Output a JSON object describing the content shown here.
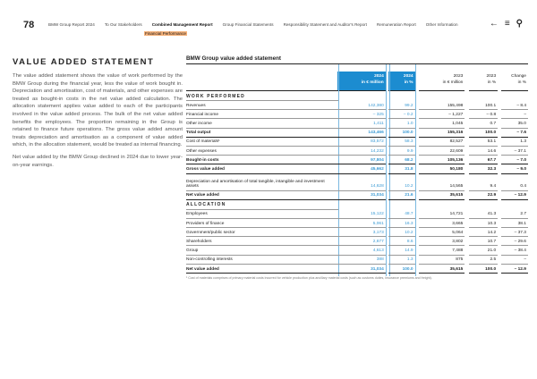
{
  "header": {
    "page_number": "78",
    "nav": [
      "BMW Group Report 2024",
      "To Our Stakeholders",
      "Combined Management Report",
      "Group Financial Statements",
      "Responsibility Statement and Auditor's Report",
      "Remuneration Report",
      "Other Information"
    ],
    "active_nav": 2,
    "subsection": "Financial Performance",
    "icons": [
      "back-arrow-icon",
      "menu-icon",
      "search-icon"
    ]
  },
  "left": {
    "title": "VALUE ADDED STATEMENT",
    "paragraphs": [
      "The value added statement shows the value of work performed by the BMW Group during the financial year, less the value of work bought in. Depreciation and amortisation, cost of materials, and other expenses are treated as bought-in costs in the net value added calculation. The allocation statement applies value added to each of the participants involved in the value added process. The bulk of the net value added benefits the employees. The proportion remaining in the Group is retained to finance future operations. The gross value added amount treats depreciation and amortisation as a component of value added which, in the allocation statement, would be treated as internal financing.",
      "Net value added by the BMW Group declined in 2024 due to lower year-on-year earnings."
    ]
  },
  "table": {
    "title": "BMW Group value added statement",
    "columns": [
      [
        "2024",
        "in € million"
      ],
      [
        "2024",
        "in %"
      ],
      [
        "2023",
        "in € million"
      ],
      [
        "2023",
        "in %"
      ],
      [
        "Change",
        "in %"
      ]
    ],
    "rows": [
      {
        "type": "section",
        "label": "WORK PERFORMED"
      },
      {
        "label": "Revenues",
        "values": [
          "142,380",
          "99.2",
          "155,498",
          "100.1",
          "– 8.4"
        ]
      },
      {
        "label": "Financial income",
        "values": [
          "– 325",
          "– 0.2",
          "– 1,227",
          "– 0.8",
          "–"
        ]
      },
      {
        "label": "Other income",
        "values": [
          "1,411",
          "1.0",
          "1,045",
          "0.7",
          "35.0"
        ]
      },
      {
        "label": "Total output",
        "bold": true,
        "values": [
          "143,466",
          "100.0",
          "155,316",
          "100.0",
          "– 7.6"
        ]
      },
      {
        "label": "Cost of materials¹",
        "values": [
          "83,572",
          "58.3",
          "82,527",
          "53.1",
          "1.3"
        ]
      },
      {
        "label": "Other expenses",
        "values": [
          "14,232",
          "9.9",
          "22,609",
          "14.6",
          "– 37.1"
        ]
      },
      {
        "label": "Bought-in costs",
        "bold": true,
        "values": [
          "97,804",
          "68.2",
          "105,136",
          "67.7",
          "– 7.0"
        ]
      },
      {
        "label": "Gross value added",
        "bold": true,
        "values": [
          "45,662",
          "31.8",
          "50,180",
          "32.3",
          "– 9.0"
        ]
      },
      {
        "label": "Depreciation and amortisation of total tangible, intangible and investment assets",
        "tall": true,
        "values": [
          "14,628",
          "10.2",
          "14,565",
          "9.4",
          "0.4"
        ]
      },
      {
        "label": "Net value added",
        "bold": true,
        "values": [
          "31,034",
          "21.6",
          "35,615",
          "22.9",
          "– 12.9"
        ]
      },
      {
        "type": "section",
        "label": "ALLOCATION"
      },
      {
        "label": "Employees",
        "values": [
          "15,122",
          "48.7",
          "14,721",
          "41.3",
          "2.7"
        ]
      },
      {
        "label": "Providers of finance",
        "values": [
          "5,061",
          "16.3",
          "3,665",
          "10.3",
          "38.1"
        ]
      },
      {
        "label": "Government/public sector",
        "values": [
          "3,173",
          "10.2",
          "5,064",
          "14.2",
          "– 37.3"
        ]
      },
      {
        "label": "Shareholders",
        "values": [
          "2,677",
          "8.6",
          "3,802",
          "10.7",
          "– 29.6"
        ]
      },
      {
        "label": "Group",
        "values": [
          "4,613",
          "14.9",
          "7,488",
          "21.0",
          "– 38.4"
        ]
      },
      {
        "label": "Non-controlling interests",
        "values": [
          "388",
          "1.3",
          "875",
          "2.5",
          "–"
        ]
      },
      {
        "label": "Net value added",
        "bold": true,
        "values": [
          "31,034",
          "100.0",
          "35,615",
          "100.0",
          "– 12.9"
        ]
      }
    ],
    "footnote": "¹ Cost of materials comprises of primary material costs incurred for vehicle production plus ancillary material costs (such as customs duties, insurance premiums and freight)."
  },
  "colors": {
    "accent": "#1c8cd0",
    "highlight": "#f6b27a"
  }
}
